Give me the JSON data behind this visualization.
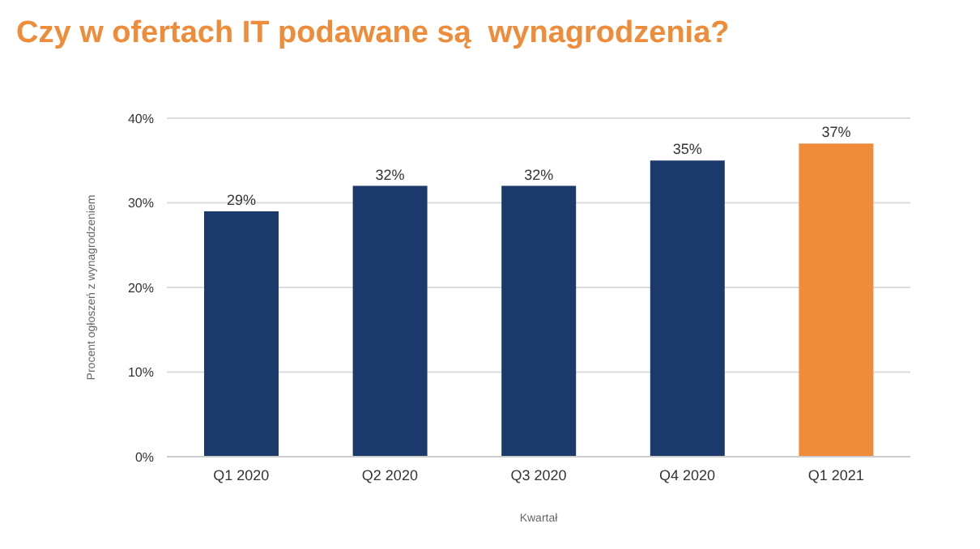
{
  "chart_data": {
    "type": "bar",
    "title": "Czy w ofertach IT podawane są  wynagrodzenia?",
    "xlabel": "Kwartał",
    "ylabel": "Procent  ogłoszeń  z  wynagrodzeniem",
    "categories": [
      "Q1 2020",
      "Q2 2020",
      "Q3 2020",
      "Q4 2020",
      "Q1 2021"
    ],
    "values": [
      29,
      32,
      32,
      35,
      37
    ],
    "colors": [
      "#1b3a6b",
      "#1b3a6b",
      "#1b3a6b",
      "#1b3a6b",
      "#ee8c3a"
    ],
    "value_labels": [
      "29%",
      "32%",
      "32%",
      "35%",
      "37%"
    ],
    "ylim": [
      0,
      40
    ],
    "yticks": [
      {
        "value": 0,
        "label": "0%"
      },
      {
        "value": 10,
        "label": "10%"
      },
      {
        "value": 20,
        "label": "20%"
      },
      {
        "value": 30,
        "label": "30%"
      },
      {
        "value": 40,
        "label": "40%"
      }
    ],
    "grid": "y"
  }
}
